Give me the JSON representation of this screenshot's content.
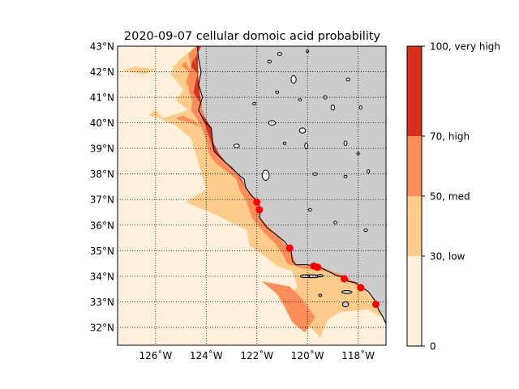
{
  "chart_data": {
    "type": "heatmap",
    "title": "2020-09-07 cellular domoic acid probability",
    "xlabel": "",
    "ylabel": "",
    "xlim": [
      -127.5,
      -116.9
    ],
    "ylim": [
      31.3,
      43.0
    ],
    "grid": true,
    "x_ticks": [
      {
        "value": -126,
        "label": "126˚W"
      },
      {
        "value": -124,
        "label": "124˚W"
      },
      {
        "value": -122,
        "label": "122˚W"
      },
      {
        "value": -120,
        "label": "120˚W"
      },
      {
        "value": -118,
        "label": "118˚W"
      }
    ],
    "y_ticks": [
      {
        "value": 43,
        "label": "43°N"
      },
      {
        "value": 42,
        "label": "42°N"
      },
      {
        "value": 41,
        "label": "41°N"
      },
      {
        "value": 40,
        "label": "40°N"
      },
      {
        "value": 39,
        "label": "39°N"
      },
      {
        "value": 38,
        "label": "38°N"
      },
      {
        "value": 37,
        "label": "37°N"
      },
      {
        "value": 36,
        "label": "36°N"
      },
      {
        "value": 35,
        "label": "35°N"
      },
      {
        "value": 34,
        "label": "34°N"
      },
      {
        "value": 33,
        "label": "33°N"
      },
      {
        "value": 32,
        "label": "32°N"
      }
    ],
    "colorbar": {
      "range": [
        0,
        100
      ],
      "levels": [
        {
          "from": 0,
          "to": 30,
          "color": "#fff0dc"
        },
        {
          "from": 30,
          "to": 50,
          "color": "#fdcb8a"
        },
        {
          "from": 50,
          "to": 70,
          "color": "#fc8d59"
        },
        {
          "from": 70,
          "to": 100,
          "color": "#d7301f"
        }
      ],
      "ticks": [
        {
          "value": 0,
          "label": "0"
        },
        {
          "value": 30,
          "label": "30, low"
        },
        {
          "value": 50,
          "label": "50, med"
        },
        {
          "value": 70,
          "label": "70, high"
        },
        {
          "value": 100,
          "label": "100, very high"
        }
      ]
    },
    "land_color": "#cccccc",
    "marker_color": "#ff0000",
    "coastline": [
      [
        -124.35,
        43.0
      ],
      [
        -124.3,
        42.5
      ],
      [
        -124.2,
        42.0
      ],
      [
        -124.3,
        41.5
      ],
      [
        -124.15,
        41.0
      ],
      [
        -124.3,
        40.5
      ],
      [
        -124.1,
        40.1
      ],
      [
        -123.8,
        39.8
      ],
      [
        -123.75,
        39.3
      ],
      [
        -123.7,
        38.9
      ],
      [
        -123.3,
        38.5
      ],
      [
        -123.0,
        38.25
      ],
      [
        -122.7,
        37.95
      ],
      [
        -122.5,
        37.8
      ],
      [
        -122.45,
        37.5
      ],
      [
        -122.25,
        37.2
      ],
      [
        -122.0,
        36.95
      ],
      [
        -121.85,
        36.6
      ],
      [
        -121.9,
        36.3
      ],
      [
        -121.6,
        35.9
      ],
      [
        -121.2,
        35.6
      ],
      [
        -120.9,
        35.35
      ],
      [
        -120.65,
        35.0
      ],
      [
        -120.6,
        34.6
      ],
      [
        -120.45,
        34.45
      ],
      [
        -120.0,
        34.45
      ],
      [
        -119.5,
        34.35
      ],
      [
        -119.1,
        34.15
      ],
      [
        -118.8,
        34.0
      ],
      [
        -118.5,
        34.0
      ],
      [
        -118.4,
        33.8
      ],
      [
        -118.1,
        33.75
      ],
      [
        -117.9,
        33.6
      ],
      [
        -117.6,
        33.4
      ],
      [
        -117.3,
        33.0
      ],
      [
        -117.2,
        32.7
      ],
      [
        -117.05,
        32.45
      ],
      [
        -116.9,
        32.15
      ]
    ],
    "islands": [
      [
        -119.85,
        34.0,
        0.3,
        0.06
      ],
      [
        -120.1,
        34.0,
        0.18,
        0.06
      ],
      [
        -119.5,
        34.02,
        0.12,
        0.04
      ],
      [
        -118.45,
        33.38,
        0.2,
        0.06
      ],
      [
        -118.5,
        32.9,
        0.12,
        0.1
      ],
      [
        -119.5,
        33.25,
        0.06,
        0.03
      ]
    ],
    "lakes": [
      [
        -121.4,
        40.0,
        0.14,
        0.09
      ],
      [
        -120.2,
        39.7,
        0.12,
        0.1
      ],
      [
        -120.05,
        39.1,
        0.06,
        0.12
      ],
      [
        -122.8,
        39.1,
        0.11,
        0.07
      ],
      [
        -121.65,
        37.95,
        0.14,
        0.2
      ],
      [
        -119.7,
        38.0,
        0.09,
        0.05
      ],
      [
        -118.5,
        39.2,
        0.06,
        0.09
      ],
      [
        -119.0,
        40.6,
        0.07,
        0.1
      ],
      [
        -120.55,
        41.7,
        0.1,
        0.15
      ],
      [
        -121.5,
        42.4,
        0.07,
        0.06
      ],
      [
        -118.4,
        41.7,
        0.07,
        0.06
      ],
      [
        -119.3,
        41.0,
        0.06,
        0.07
      ],
      [
        -121.2,
        41.2,
        0.06,
        0.05
      ],
      [
        -117.9,
        40.6,
        0.05,
        0.07
      ],
      [
        -120.3,
        40.9,
        0.06,
        0.04
      ],
      [
        -122.1,
        40.75,
        0.06,
        0.05
      ],
      [
        -118.0,
        38.8,
        0.05,
        0.05
      ],
      [
        -118.5,
        37.9,
        0.06,
        0.04
      ],
      [
        -117.6,
        38.1,
        0.05,
        0.06
      ],
      [
        -120.9,
        39.2,
        0.05,
        0.05
      ],
      [
        -121.1,
        42.7,
        0.08,
        0.06
      ],
      [
        -120.0,
        42.8,
        0.05,
        0.05
      ],
      [
        -117.7,
        35.8,
        0.07,
        0.05
      ],
      [
        -118.9,
        36.1,
        0.06,
        0.05
      ],
      [
        -119.9,
        36.6,
        0.06,
        0.05
      ]
    ],
    "regions": {
      "low": [
        [
          [
            -124.4,
            43.0
          ],
          [
            -124.9,
            42.6
          ],
          [
            -125.3,
            42.2
          ],
          [
            -125.4,
            41.9
          ],
          [
            -124.9,
            41.3
          ],
          [
            -125.2,
            40.9
          ],
          [
            -124.7,
            40.5
          ],
          [
            -125.8,
            40.15
          ],
          [
            -125.2,
            39.9
          ],
          [
            -124.6,
            39.4
          ],
          [
            -124.3,
            38.4
          ],
          [
            -124.0,
            37.4
          ],
          [
            -124.8,
            36.9
          ],
          [
            -123.6,
            36.4
          ],
          [
            -122.4,
            35.8
          ],
          [
            -122.3,
            35.2
          ],
          [
            -121.7,
            34.8
          ],
          [
            -121.2,
            34.4
          ],
          [
            -120.6,
            34.2
          ],
          [
            -120.4,
            33.6
          ],
          [
            -121.0,
            32.9
          ],
          [
            -120.3,
            32.6
          ],
          [
            -119.9,
            32.0
          ],
          [
            -119.5,
            31.6
          ],
          [
            -119.2,
            32.3
          ],
          [
            -118.7,
            32.6
          ],
          [
            -117.6,
            32.7
          ],
          [
            -117.1,
            32.4
          ],
          [
            -117.2,
            32.7
          ],
          [
            -117.3,
            33.0
          ],
          [
            -117.9,
            33.6
          ],
          [
            -118.5,
            34.0
          ],
          [
            -119.5,
            34.35
          ],
          [
            -120.45,
            34.45
          ],
          [
            -120.65,
            35.0
          ],
          [
            -121.2,
            35.6
          ],
          [
            -121.9,
            36.3
          ],
          [
            -122.0,
            36.95
          ],
          [
            -122.45,
            37.5
          ],
          [
            -123.0,
            38.25
          ],
          [
            -123.7,
            38.9
          ],
          [
            -124.1,
            40.1
          ],
          [
            -124.3,
            41.5
          ],
          [
            -124.35,
            43.0
          ]
        ],
        [
          [
            -127.3,
            42.05
          ],
          [
            -126.4,
            41.9
          ],
          [
            -126.0,
            42.1
          ],
          [
            -126.8,
            42.2
          ]
        ],
        [
          [
            -126.3,
            40.3
          ],
          [
            -125.7,
            40.15
          ],
          [
            -126.0,
            40.5
          ]
        ]
      ],
      "med": [
        [
          [
            -124.4,
            43.0
          ],
          [
            -124.7,
            42.7
          ],
          [
            -124.6,
            42.2
          ],
          [
            -124.8,
            41.6
          ],
          [
            -124.5,
            41.1
          ],
          [
            -124.6,
            40.5
          ],
          [
            -124.2,
            39.9
          ],
          [
            -124.0,
            39.3
          ],
          [
            -123.9,
            38.8
          ],
          [
            -123.6,
            38.4
          ],
          [
            -123.2,
            38.1
          ],
          [
            -122.8,
            37.8
          ],
          [
            -122.7,
            37.4
          ],
          [
            -122.4,
            36.9
          ],
          [
            -122.2,
            36.3
          ],
          [
            -121.8,
            35.8
          ],
          [
            -121.3,
            35.3
          ],
          [
            -121.0,
            34.9
          ],
          [
            -120.8,
            34.5
          ],
          [
            -120.2,
            34.3
          ],
          [
            -119.2,
            34.2
          ],
          [
            -118.6,
            33.9
          ],
          [
            -118.0,
            33.6
          ],
          [
            -117.6,
            33.3
          ],
          [
            -117.9,
            33.6
          ],
          [
            -118.5,
            34.0
          ],
          [
            -119.5,
            34.35
          ],
          [
            -120.45,
            34.45
          ],
          [
            -120.65,
            35.0
          ],
          [
            -121.2,
            35.6
          ],
          [
            -121.9,
            36.3
          ],
          [
            -122.0,
            36.95
          ],
          [
            -122.45,
            37.5
          ],
          [
            -123.0,
            38.25
          ],
          [
            -123.7,
            38.9
          ],
          [
            -124.1,
            40.1
          ],
          [
            -124.3,
            41.5
          ],
          [
            -124.35,
            43.0
          ]
        ],
        [
          [
            -121.8,
            33.8
          ],
          [
            -121.2,
            33.3
          ],
          [
            -120.9,
            32.8
          ],
          [
            -120.6,
            32.2
          ],
          [
            -120.1,
            31.8
          ],
          [
            -119.7,
            32.4
          ],
          [
            -120.2,
            33.1
          ],
          [
            -120.7,
            33.6
          ]
        ],
        [
          [
            -125.2,
            40.15
          ],
          [
            -124.6,
            40.0
          ],
          [
            -124.9,
            40.3
          ]
        ],
        [
          [
            -125.0,
            42.25
          ],
          [
            -124.6,
            41.95
          ],
          [
            -124.8,
            42.4
          ]
        ]
      ],
      "high": [
        [
          [
            -124.3,
            43.0
          ],
          [
            -124.55,
            42.6
          ],
          [
            -124.5,
            42.0
          ],
          [
            -124.7,
            41.3
          ],
          [
            -124.5,
            40.7
          ],
          [
            -124.4,
            40.2
          ],
          [
            -124.0,
            39.5
          ],
          [
            -123.8,
            38.9
          ],
          [
            -123.3,
            38.2
          ],
          [
            -122.7,
            37.7
          ],
          [
            -122.5,
            37.3
          ],
          [
            -122.3,
            37.0
          ],
          [
            -122.0,
            36.6
          ],
          [
            -122.0,
            36.95
          ],
          [
            -122.45,
            37.5
          ],
          [
            -123.0,
            38.25
          ],
          [
            -123.7,
            38.9
          ],
          [
            -124.1,
            40.1
          ],
          [
            -124.3,
            41.5
          ],
          [
            -124.35,
            43.0
          ]
        ],
        [
          [
            -125.0,
            40.3
          ],
          [
            -124.6,
            40.0
          ],
          [
            -124.2,
            39.8
          ],
          [
            -124.5,
            40.1
          ]
        ]
      ],
      "veryhigh": [
        [
          [
            -124.2,
            43.0
          ],
          [
            -124.45,
            42.5
          ],
          [
            -124.35,
            41.9
          ],
          [
            -124.5,
            41.2
          ],
          [
            -124.2,
            40.7
          ],
          [
            -124.1,
            40.3
          ],
          [
            -123.8,
            39.8
          ],
          [
            -123.75,
            39.3
          ],
          [
            -123.5,
            38.8
          ],
          [
            -123.0,
            38.2
          ],
          [
            -122.6,
            37.8
          ],
          [
            -122.4,
            37.4
          ],
          [
            -122.45,
            37.5
          ],
          [
            -123.0,
            38.25
          ],
          [
            -123.7,
            38.9
          ],
          [
            -124.1,
            40.1
          ],
          [
            -124.3,
            41.5
          ],
          [
            -124.35,
            43.0
          ]
        ],
        [
          [
            -124.6,
            42.2
          ],
          [
            -124.3,
            41.9
          ],
          [
            -124.5,
            42.5
          ]
        ]
      ]
    },
    "markers": [
      {
        "lon": -122.0,
        "lat": 36.9
      },
      {
        "lon": -121.9,
        "lat": 36.6
      },
      {
        "lon": -120.7,
        "lat": 35.1
      },
      {
        "lon": -119.75,
        "lat": 34.4
      },
      {
        "lon": -119.6,
        "lat": 34.35
      },
      {
        "lon": -118.55,
        "lat": 33.9
      },
      {
        "lon": -117.9,
        "lat": 33.55
      },
      {
        "lon": -117.3,
        "lat": 32.9
      }
    ]
  }
}
